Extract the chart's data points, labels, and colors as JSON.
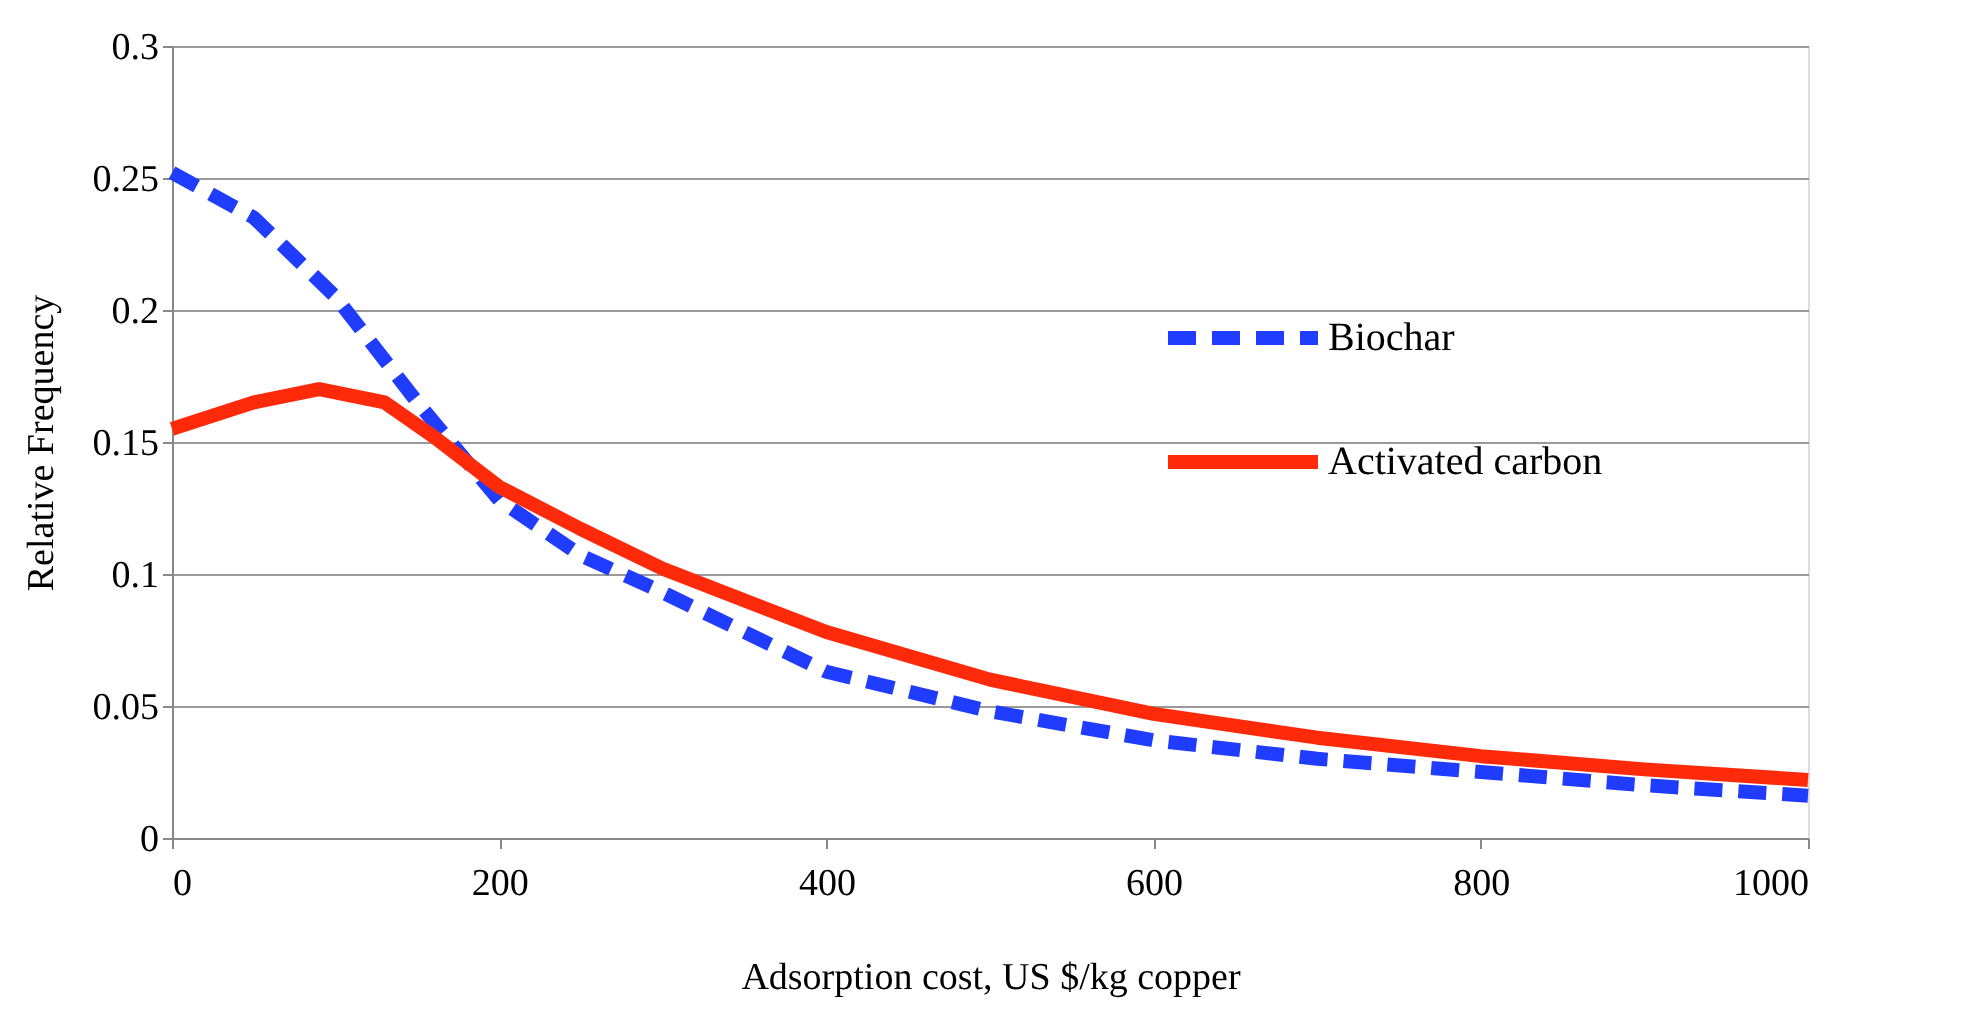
{
  "chart_data": {
    "type": "line",
    "xlabel": "Adsorption cost, US $/kg copper",
    "ylabel": "Relative Frequency",
    "xlim": [
      0,
      1000
    ],
    "xticks": [
      0,
      200,
      400,
      600,
      800,
      1000
    ],
    "ylim": [
      0,
      0.3
    ],
    "yticks": [
      0,
      0.05,
      0.1,
      0.15,
      0.2,
      0.25,
      0.3
    ],
    "grid": "y",
    "legend": "right",
    "marker": "none",
    "series": [
      {
        "name": "Biochar",
        "color": "#1f3cff",
        "line_style": "dashed",
        "x": [
          0,
          50,
          100,
          150,
          200,
          250,
          300,
          400,
          500,
          600,
          700,
          800,
          900,
          1000
        ],
        "values": [
          0.252,
          0.235,
          0.205,
          0.165,
          0.128,
          0.107,
          0.093,
          0.063,
          0.048,
          0.037,
          0.03,
          0.025,
          0.02,
          0.016
        ]
      },
      {
        "name": "Activated carbon",
        "color": "#ff2a0a",
        "line_style": "solid",
        "x": [
          0,
          50,
          90,
          130,
          160,
          200,
          250,
          300,
          400,
          500,
          600,
          700,
          800,
          900,
          1000
        ],
        "values": [
          0.155,
          0.165,
          0.17,
          0.165,
          0.152,
          0.133,
          0.117,
          0.102,
          0.078,
          0.06,
          0.047,
          0.038,
          0.031,
          0.026,
          0.022
        ]
      }
    ]
  }
}
